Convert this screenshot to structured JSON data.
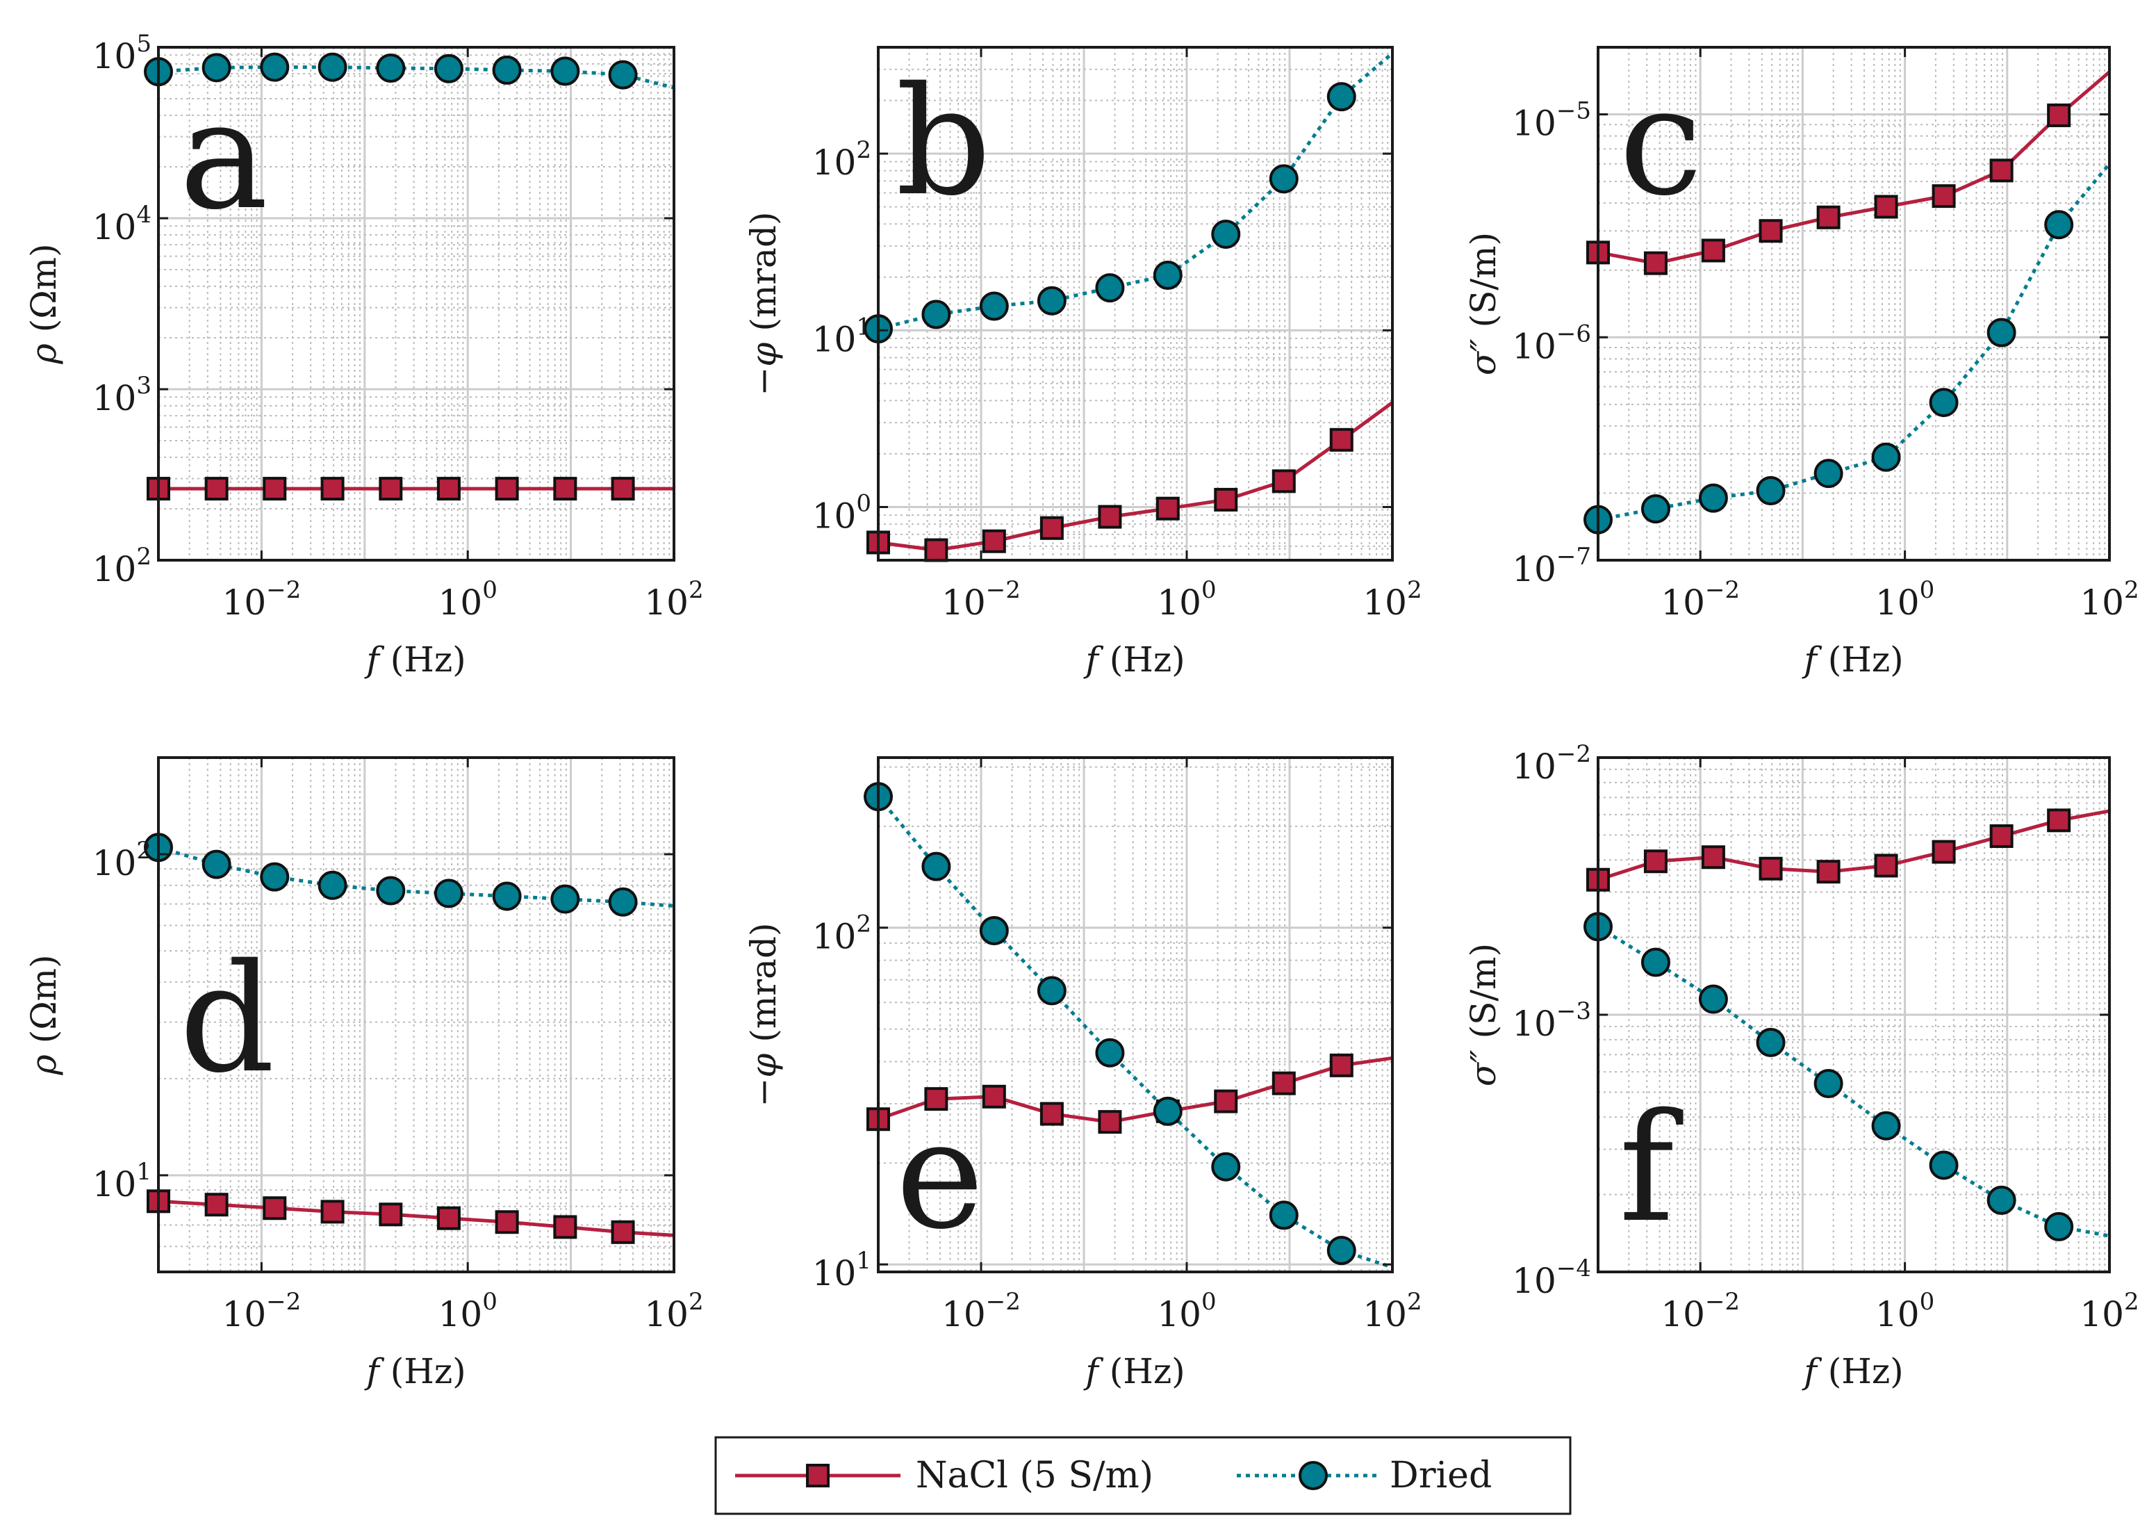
{
  "colors": {
    "nacl": "#B5203F",
    "dried": "#007D8F",
    "marker_edge": "#111111",
    "grid_major": "#cccccc",
    "grid_minor": "#bbbbbb",
    "axis": "#1a1a1a"
  },
  "legend": {
    "nacl_label": "NaCl (5 S/m)",
    "dried_label": "Dried"
  },
  "chart_data": [
    {
      "panel": "a",
      "type": "line",
      "xscale": "log",
      "yscale": "log",
      "xlabel": "f (Hz)",
      "ylabel": "ρ (Ωm)",
      "xlim": [
        0.001,
        100
      ],
      "ylim": [
        100,
        100000
      ],
      "xticks": [
        0.01,
        1,
        100
      ],
      "yticks": [
        100,
        1000,
        10000,
        100000
      ],
      "x": [
        0.001,
        0.00366,
        0.0134,
        0.0488,
        0.179,
        0.655,
        2.4,
        8.8,
        32
      ],
      "series": [
        {
          "name": "NaCl (5 S/m)",
          "values": [
            262,
            262,
            262,
            262,
            262,
            262,
            262,
            262,
            262
          ],
          "end": 262
        },
        {
          "name": "Dried",
          "values": [
            72000,
            76000,
            76500,
            76500,
            75500,
            75000,
            73500,
            72500,
            69000
          ],
          "end": 58000
        }
      ]
    },
    {
      "panel": "b",
      "type": "line",
      "xscale": "log",
      "yscale": "log",
      "xlabel": "f (Hz)",
      "ylabel": "−φ (mrad)",
      "xlim": [
        0.001,
        100
      ],
      "ylim": [
        0.5,
        400
      ],
      "xticks": [
        0.01,
        1,
        100
      ],
      "yticks": [
        1,
        10,
        100
      ],
      "x": [
        0.001,
        0.00366,
        0.0134,
        0.0488,
        0.179,
        0.655,
        2.4,
        8.8,
        32
      ],
      "series": [
        {
          "name": "NaCl (5 S/m)",
          "values": [
            0.63,
            0.57,
            0.64,
            0.76,
            0.88,
            0.98,
            1.1,
            1.4,
            2.4
          ],
          "end": 3.9
        },
        {
          "name": "Dried",
          "values": [
            10.2,
            12.3,
            13.7,
            14.7,
            17.4,
            20.5,
            35,
            72,
            210
          ],
          "end": 370
        }
      ]
    },
    {
      "panel": "c",
      "type": "line",
      "xscale": "log",
      "yscale": "log",
      "xlabel": "f (Hz)",
      "ylabel": "σ″ (S/m)",
      "xlim": [
        0.001,
        100
      ],
      "ylim": [
        1e-07,
        2e-05
      ],
      "xticks": [
        0.01,
        1,
        100
      ],
      "yticks": [
        1e-07,
        1e-06,
        1e-05
      ],
      "x": [
        0.001,
        0.00366,
        0.0134,
        0.0488,
        0.179,
        0.655,
        2.4,
        8.8,
        32
      ],
      "series": [
        {
          "name": "NaCl (5 S/m)",
          "values": [
            2.4e-06,
            2.15e-06,
            2.45e-06,
            3e-06,
            3.45e-06,
            3.85e-06,
            4.3e-06,
            5.6e-06,
            9.9e-06
          ],
          "end": 1.55e-05
        },
        {
          "name": "Dried",
          "values": [
            1.52e-07,
            1.7e-07,
            1.9e-07,
            2.05e-07,
            2.45e-07,
            2.9e-07,
            5.1e-07,
            1.05e-06,
            3.2e-06
          ],
          "end": 6e-06
        }
      ]
    },
    {
      "panel": "d",
      "type": "line",
      "xscale": "log",
      "yscale": "log",
      "xlabel": "f (Hz)",
      "ylabel": "ρ (Ωm)",
      "xlim": [
        0.001,
        100
      ],
      "ylim": [
        5,
        200
      ],
      "xticks": [
        0.01,
        1,
        100
      ],
      "yticks": [
        10,
        100
      ],
      "x": [
        0.001,
        0.00366,
        0.0134,
        0.0488,
        0.179,
        0.655,
        2.4,
        8.8,
        32
      ],
      "series": [
        {
          "name": "NaCl (5 S/m)",
          "values": [
            8.3,
            8.1,
            7.9,
            7.7,
            7.55,
            7.35,
            7.15,
            6.9,
            6.65
          ],
          "end": 6.5
        },
        {
          "name": "Dried",
          "values": [
            105,
            93,
            85,
            80,
            77,
            75.5,
            74,
            72.5,
            71
          ],
          "end": 69
        }
      ]
    },
    {
      "panel": "e",
      "type": "line",
      "xscale": "log",
      "yscale": "log",
      "xlabel": "f (Hz)",
      "ylabel": "−φ (mrad)",
      "xlim": [
        0.001,
        100
      ],
      "ylim": [
        9.5,
        320
      ],
      "xticks": [
        0.01,
        1,
        100
      ],
      "yticks": [
        10,
        100
      ],
      "x": [
        0.001,
        0.00366,
        0.0134,
        0.0488,
        0.179,
        0.655,
        2.4,
        8.8,
        32
      ],
      "series": [
        {
          "name": "NaCl (5 S/m)",
          "values": [
            27,
            31,
            31.5,
            28,
            26.5,
            28.5,
            30.5,
            34.5,
            39
          ],
          "end": 41
        },
        {
          "name": "Dried",
          "values": [
            245,
            152,
            98,
            65,
            42.5,
            28.5,
            19.5,
            14,
            11
          ],
          "end": 9.8
        }
      ]
    },
    {
      "panel": "f",
      "type": "line",
      "xscale": "log",
      "yscale": "log",
      "xlabel": "f (Hz)",
      "ylabel": "σ″ (S/m)",
      "xlim": [
        0.001,
        100
      ],
      "ylim": [
        0.0001,
        0.01
      ],
      "xticks": [
        0.01,
        1,
        100
      ],
      "yticks": [
        0.0001,
        0.001,
        0.01
      ],
      "x": [
        0.001,
        0.00366,
        0.0134,
        0.0488,
        0.179,
        0.655,
        2.4,
        8.8,
        32
      ],
      "series": [
        {
          "name": "NaCl (5 S/m)",
          "values": [
            0.00335,
            0.00395,
            0.0041,
            0.0037,
            0.0036,
            0.0038,
            0.0043,
            0.00495,
            0.0057
          ],
          "end": 0.0062
        },
        {
          "name": "Dried",
          "values": [
            0.0022,
            0.0016,
            0.00115,
            0.00078,
            0.00054,
            0.00037,
            0.00026,
            0.00019,
            0.00015
          ],
          "end": 0.000138
        }
      ]
    }
  ]
}
